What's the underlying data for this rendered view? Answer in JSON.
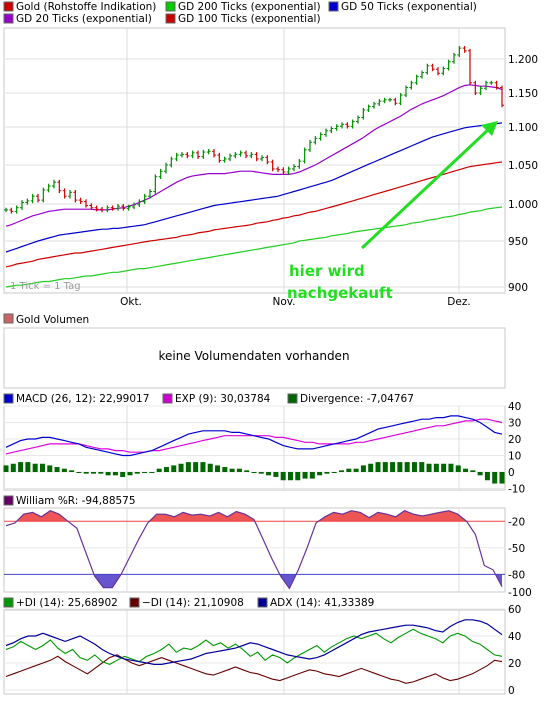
{
  "legend_main": [
    {
      "label": "Gold (Rohstoffe Indikation)",
      "color": "#cc0000"
    },
    {
      "label": "GD 200 Ticks (exponential)",
      "color": "#00cc00"
    },
    {
      "label": "GD 50 Ticks (exponential)",
      "color": "#0000cc"
    },
    {
      "label": "GD 20 Ticks (exponential)",
      "color": "#9900cc"
    },
    {
      "label": "GD 100 Ticks (exponential)",
      "color": "#cc0000"
    }
  ],
  "tick_note": "1 Tick = 1 Tag",
  "annotation": {
    "line1": "hier wird",
    "line2": "nachgekauft",
    "color": "#22dd22"
  },
  "volume": {
    "label": "Gold Volumen",
    "message": "keine Volumendaten vorhanden",
    "color": "#cc6666"
  },
  "macd_legend": [
    {
      "label": "MACD (26, 12): 22,99017",
      "color": "#0000cc"
    },
    {
      "label": "EXP (9): 30,03784",
      "color": "#cc00cc"
    },
    {
      "label": "Divergence: -7,04767",
      "color": "#006600"
    }
  ],
  "williams_legend": {
    "label": "William %R: -94,88575",
    "color": "#660066"
  },
  "dmi_legend": [
    {
      "label": "+DI (14): 25,68902",
      "color": "#009900"
    },
    {
      "label": "−DI (14): 21,10908",
      "color": "#660000"
    },
    {
      "label": "ADX (14): 41,33389",
      "color": "#000099"
    }
  ],
  "chart_data": [
    {
      "type": "line",
      "name": "price",
      "x_tick_labels": [
        "Okt.",
        "Nov.",
        "Dez."
      ],
      "y_tick_labels": [
        "1.200",
        "1.150",
        "1.100",
        "1.050",
        "1.000",
        "950",
        "900"
      ],
      "ylim": [
        900,
        1230
      ],
      "close": [
        992,
        990,
        995,
        1002,
        1004,
        1010,
        1005,
        1018,
        1023,
        1028,
        1017,
        1010,
        1015,
        1005,
        1003,
        998,
        995,
        993,
        992,
        995,
        994,
        997,
        994,
        996,
        999,
        1003,
        1010,
        1016,
        1035,
        1042,
        1050,
        1058,
        1063,
        1064,
        1062,
        1066,
        1061,
        1067,
        1068,
        1063,
        1056,
        1058,
        1062,
        1064,
        1066,
        1062,
        1064,
        1058,
        1060,
        1054,
        1045,
        1044,
        1041,
        1045,
        1048,
        1055,
        1070,
        1080,
        1085,
        1090,
        1095,
        1098,
        1101,
        1104,
        1101,
        1108,
        1114,
        1125,
        1130,
        1134,
        1138,
        1140,
        1140,
        1135,
        1147,
        1158,
        1165,
        1174,
        1180,
        1190,
        1185,
        1179,
        1186,
        1196,
        1206,
        1216,
        1212,
        1165,
        1150,
        1157,
        1165,
        1165,
        1158,
        1132
      ],
      "sma20": [
        970,
        972,
        975,
        978,
        981,
        984,
        986,
        988,
        990,
        991,
        992,
        993,
        993,
        993,
        993,
        993,
        993,
        992,
        992,
        992,
        993,
        994,
        995,
        997,
        999,
        1002,
        1005,
        1008,
        1012,
        1016,
        1020,
        1024,
        1028,
        1031,
        1034,
        1036,
        1037,
        1038,
        1039,
        1039,
        1039,
        1039,
        1040,
        1041,
        1042,
        1042,
        1042,
        1041,
        1040,
        1039,
        1038,
        1038,
        1038,
        1038,
        1039,
        1041,
        1044,
        1047,
        1050,
        1054,
        1058,
        1062,
        1066,
        1070,
        1074,
        1078,
        1082,
        1086,
        1091,
        1096,
        1100,
        1104,
        1108,
        1112,
        1116,
        1121,
        1126,
        1130,
        1134,
        1137,
        1140,
        1143,
        1146,
        1150,
        1154,
        1158,
        1161,
        1162,
        1161,
        1160,
        1160,
        1159,
        1158,
        1155
      ],
      "sma50": [
        938,
        940,
        942,
        944,
        946,
        948,
        950,
        952,
        954,
        956,
        958,
        959,
        960,
        961,
        962,
        963,
        964,
        965,
        966,
        966,
        967,
        967,
        968,
        969,
        970,
        971,
        972,
        974,
        976,
        978,
        980,
        982,
        984,
        986,
        988,
        990,
        992,
        994,
        996,
        998,
        999,
        1000,
        1001,
        1002,
        1003,
        1004,
        1005,
        1006,
        1007,
        1008,
        1009,
        1010,
        1012,
        1014,
        1016,
        1018,
        1020,
        1022,
        1024,
        1026,
        1028,
        1030,
        1033,
        1036,
        1039,
        1042,
        1045,
        1048,
        1051,
        1054,
        1057,
        1060,
        1063,
        1066,
        1069,
        1072,
        1075,
        1078,
        1081,
        1084,
        1087,
        1089,
        1091,
        1093,
        1095,
        1097,
        1099,
        1100,
        1101,
        1102,
        1103,
        1104,
        1105,
        1106
      ],
      "sma100": [
        922,
        923,
        925,
        926,
        927,
        928,
        930,
        931,
        932,
        933,
        934,
        935,
        936,
        937,
        937,
        938,
        939,
        940,
        941,
        942,
        943,
        944,
        945,
        946,
        947,
        948,
        949,
        950,
        951,
        952,
        953,
        954,
        955,
        957,
        958,
        959,
        961,
        962,
        963,
        965,
        966,
        967,
        968,
        969,
        970,
        971,
        972,
        974,
        975,
        976,
        978,
        979,
        981,
        982,
        984,
        985,
        987,
        989,
        990,
        992,
        994,
        996,
        998,
        1000,
        1002,
        1004,
        1006,
        1008,
        1010,
        1012,
        1014,
        1016,
        1018,
        1020,
        1022,
        1024,
        1026,
        1028,
        1030,
        1032,
        1034,
        1036,
        1038,
        1040,
        1042,
        1044,
        1046,
        1048,
        1049,
        1050,
        1051,
        1052,
        1053,
        1054
      ],
      "sma200": [
        900,
        901,
        902,
        902,
        903,
        904,
        905,
        906,
        906,
        907,
        908,
        909,
        909,
        910,
        911,
        912,
        912,
        913,
        914,
        915,
        916,
        916,
        917,
        918,
        919,
        920,
        920,
        921,
        922,
        923,
        924,
        925,
        926,
        927,
        928,
        929,
        930,
        931,
        932,
        933,
        934,
        935,
        936,
        937,
        938,
        939,
        940,
        941,
        942,
        943,
        944,
        945,
        946,
        947,
        948,
        950,
        951,
        952,
        953,
        954,
        955,
        957,
        958,
        959,
        960,
        962,
        963,
        964,
        965,
        966,
        967,
        968,
        969,
        970,
        971,
        972,
        974,
        975,
        976,
        978,
        979,
        980,
        982,
        983,
        984,
        986,
        987,
        989,
        990,
        991,
        993,
        994,
        995,
        996
      ]
    },
    {
      "type": "bar",
      "name": "macd",
      "ylim": [
        -12,
        42
      ],
      "y_tick_labels": [
        "40",
        "30",
        "20",
        "10",
        "0",
        "-10"
      ],
      "macd": [
        15,
        17,
        19,
        20,
        20,
        21,
        21,
        20,
        19,
        18,
        17,
        15,
        14,
        13,
        12,
        11,
        10,
        10,
        11,
        12,
        13,
        15,
        17,
        19,
        21,
        23,
        24,
        25,
        25,
        25,
        25,
        24,
        24,
        23,
        22,
        21,
        20,
        18,
        16,
        15,
        14,
        14,
        14,
        15,
        16,
        17,
        18,
        19,
        20,
        22,
        24,
        26,
        27,
        28,
        29,
        30,
        31,
        32,
        32,
        33,
        33,
        34,
        34,
        33,
        32,
        30,
        27,
        24,
        23
      ],
      "exp": [
        11,
        12,
        13,
        14,
        15,
        16,
        17,
        17,
        17,
        17,
        17,
        16,
        15,
        14,
        14,
        13,
        13,
        12,
        12,
        12,
        13,
        13,
        14,
        15,
        16,
        17,
        18,
        19,
        20,
        21,
        22,
        22,
        22,
        22,
        22,
        22,
        22,
        21,
        21,
        20,
        19,
        18,
        18,
        17,
        17,
        17,
        17,
        17,
        18,
        18,
        19,
        20,
        21,
        22,
        23,
        24,
        25,
        26,
        27,
        28,
        28,
        29,
        30,
        31,
        31,
        32,
        32,
        31,
        30
      ]
    },
    {
      "type": "area",
      "name": "williams_r",
      "ylim": [
        -100,
        -5
      ],
      "y_tick_labels": [
        "-20",
        "-50",
        "-80",
        "-100"
      ],
      "values": [
        -25,
        -22,
        -12,
        -10,
        -15,
        -8,
        -12,
        -20,
        -28,
        -55,
        -82,
        -95,
        -95,
        -80,
        -60,
        -40,
        -22,
        -12,
        -12,
        -15,
        -10,
        -13,
        -12,
        -14,
        -10,
        -15,
        -9,
        -12,
        -18,
        -40,
        -62,
        -82,
        -96,
        -75,
        -50,
        -22,
        -15,
        -10,
        -12,
        -8,
        -10,
        -16,
        -10,
        -12,
        -15,
        -8,
        -12,
        -14,
        -12,
        -10,
        -8,
        -12,
        -20,
        -35,
        -70,
        -75,
        -94
      ],
      "lines": [
        -20,
        -80
      ]
    },
    {
      "type": "line",
      "name": "dmi",
      "ylim": [
        0,
        62
      ],
      "y_tick_labels": [
        "60",
        "40",
        "20",
        "0"
      ],
      "plus_di": [
        30,
        32,
        36,
        33,
        30,
        33,
        37,
        31,
        27,
        30,
        24,
        22,
        26,
        21,
        19,
        22,
        25,
        23,
        21,
        25,
        27,
        30,
        34,
        28,
        31,
        30,
        33,
        37,
        33,
        35,
        31,
        34,
        30,
        25,
        28,
        22,
        26,
        24,
        20,
        24,
        27,
        30,
        33,
        28,
        32,
        35,
        38,
        40,
        38,
        40,
        42,
        38,
        35,
        39,
        42,
        45,
        42,
        40,
        38,
        35,
        40,
        42,
        40,
        36,
        34,
        30,
        26,
        25
      ],
      "minus_di": [
        10,
        12,
        14,
        16,
        18,
        20,
        22,
        25,
        21,
        18,
        15,
        12,
        16,
        20,
        24,
        26,
        23,
        20,
        18,
        20,
        22,
        24,
        22,
        20,
        18,
        16,
        14,
        12,
        11,
        13,
        15,
        17,
        15,
        13,
        12,
        10,
        8,
        7,
        9,
        11,
        13,
        15,
        14,
        12,
        11,
        10,
        12,
        14,
        16,
        14,
        12,
        10,
        8,
        7,
        5,
        6,
        8,
        10,
        12,
        9,
        7,
        8,
        10,
        12,
        15,
        18,
        22,
        21
      ],
      "adx": [
        33,
        35,
        38,
        40,
        40,
        42,
        40,
        38,
        36,
        38,
        40,
        37,
        34,
        30,
        27,
        25,
        23,
        22,
        21,
        20,
        19,
        19,
        20,
        21,
        22,
        23,
        25,
        27,
        28,
        29,
        30,
        31,
        33,
        35,
        34,
        32,
        30,
        28,
        26,
        25,
        24,
        23,
        24,
        26,
        29,
        32,
        35,
        38,
        41,
        43,
        44,
        45,
        46,
        47,
        48,
        48,
        47,
        46,
        44,
        43,
        47,
        50,
        52,
        52,
        51,
        49,
        45,
        41
      ]
    }
  ]
}
